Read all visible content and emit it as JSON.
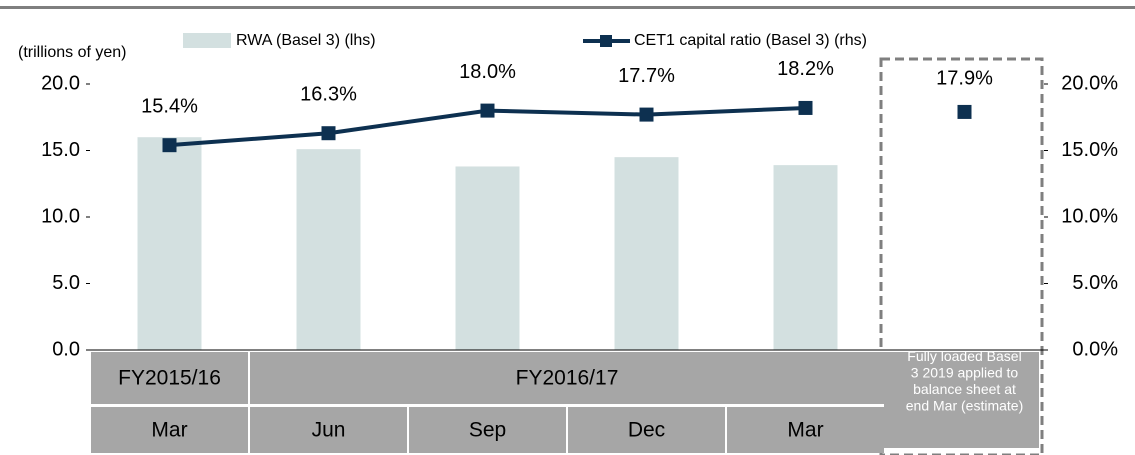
{
  "chart_data": {
    "type": "bar_line",
    "y_axis_label": "(trillions of yen)",
    "categories": [
      "Mar",
      "Jun",
      "Sep",
      "Dec",
      "Mar"
    ],
    "groups": [
      {
        "label": "FY2015/16",
        "span": 1
      },
      {
        "label": "FY2016/17",
        "span": 4
      }
    ],
    "series": [
      {
        "name": "RWA (Basel 3) (lhs)",
        "color": "#d3e0e0",
        "type": "bar",
        "values": [
          16.0,
          15.1,
          13.8,
          14.5,
          13.9
        ]
      },
      {
        "name": "CET1 capital ratio (Basel 3) (rhs)",
        "color": "#0d3050",
        "type": "line",
        "axis": "y2",
        "values": [
          15.4,
          16.3,
          18.0,
          17.7,
          18.2
        ],
        "value_labels": [
          "15.4%",
          "16.3%",
          "18.0%",
          "17.7%",
          "18.2%"
        ]
      }
    ],
    "estimate": {
      "label": "Fully loaded Basel 3 2019 applied to balance sheet at end Mar (estimate)",
      "value": 17.9,
      "value_label": "17.9%"
    },
    "ylim": [
      0,
      20
    ],
    "yticks": [
      {
        "value": 0,
        "label": "0.0"
      },
      {
        "value": 5,
        "label": "5.0"
      },
      {
        "value": 10,
        "label": "10.0"
      },
      {
        "value": 15,
        "label": "15.0"
      },
      {
        "value": 20,
        "label": "20.0"
      }
    ],
    "y2lim": [
      0,
      20
    ],
    "y2ticks": [
      {
        "value": 0,
        "label": "0.0%"
      },
      {
        "value": 5,
        "label": "5.0%"
      },
      {
        "value": 10,
        "label": "10.0%"
      },
      {
        "value": 15,
        "label": "15.0%"
      },
      {
        "value": 20,
        "label": "20.0%"
      }
    ]
  }
}
